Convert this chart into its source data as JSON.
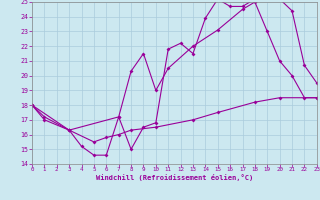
{
  "title": "",
  "xlabel": "Windchill (Refroidissement éolien,°C)",
  "bg_color": "#cce8f0",
  "grid_color": "#aaccdd",
  "line_color": "#990099",
  "xmin": 0,
  "xmax": 23,
  "ymin": 14,
  "ymax": 25,
  "line1_x": [
    0,
    1,
    3,
    4,
    5,
    6,
    7,
    8,
    9,
    10,
    11,
    12,
    13,
    14,
    15,
    16,
    17,
    18,
    19,
    20,
    21,
    22,
    23
  ],
  "line1_y": [
    18,
    17,
    16.3,
    15.2,
    14.6,
    14.6,
    17.2,
    15.0,
    16.5,
    16.8,
    21.8,
    22.2,
    21.5,
    23.9,
    25.2,
    24.7,
    24.7,
    25.2,
    25.2,
    25.2,
    24.4,
    20.7,
    19.5
  ],
  "line2_x": [
    0,
    3,
    7,
    8,
    9,
    10,
    11,
    13,
    15,
    17,
    18,
    19,
    20,
    21,
    22,
    23
  ],
  "line2_y": [
    18,
    16.3,
    17.2,
    20.3,
    21.5,
    19.0,
    20.5,
    22.0,
    23.1,
    24.5,
    25.0,
    23.0,
    21.0,
    20.0,
    18.5,
    18.5
  ],
  "line3_x": [
    0,
    1,
    3,
    5,
    6,
    7,
    8,
    10,
    13,
    15,
    18,
    20,
    23
  ],
  "line3_y": [
    18,
    17.2,
    16.3,
    15.5,
    15.8,
    16.0,
    16.3,
    16.5,
    17.0,
    17.5,
    18.2,
    18.5,
    18.5
  ]
}
